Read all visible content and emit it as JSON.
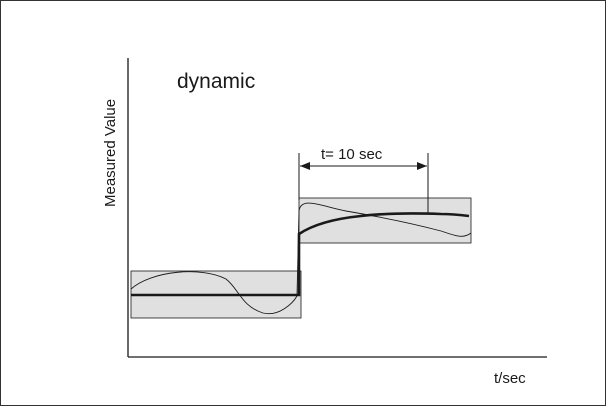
{
  "figure": {
    "mode_label": "dynamic",
    "y_axis_label": "Measured Value",
    "x_axis_label": "t/sec",
    "interval_label": "t= 10 sec"
  },
  "colors": {
    "band_fill": "#e0e0e0",
    "line": "#1a1a1a",
    "frame": "#333333"
  }
}
